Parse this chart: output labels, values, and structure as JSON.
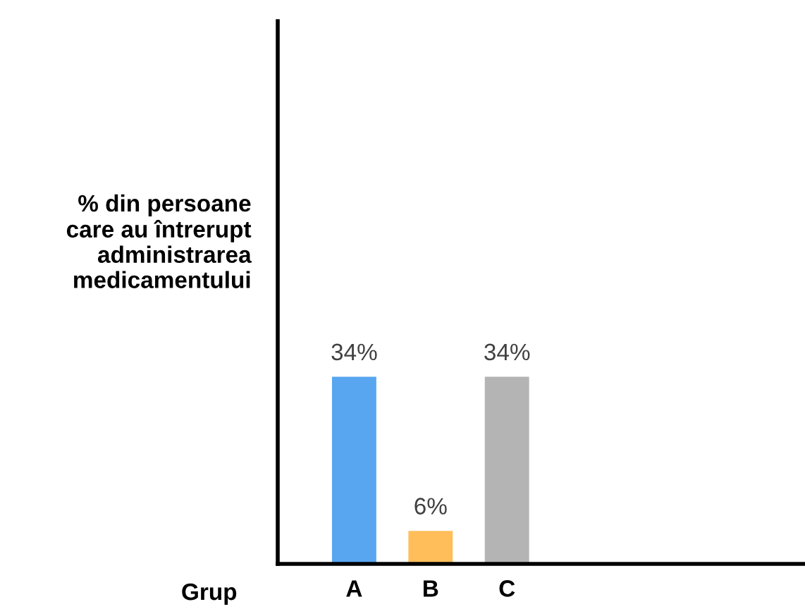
{
  "chart_data": {
    "type": "bar",
    "xlabel": "Grup",
    "ylabel": "% din persoane\ncare au întrerupt\nadministrarea\nmedicamentului",
    "categories": [
      "A",
      "B",
      "C"
    ],
    "values": [
      34,
      6,
      34
    ],
    "colors": [
      "#58a5f0",
      "#ffbe5a",
      "#b4b4b4"
    ],
    "value_labels": [
      "34%",
      "6%",
      "34%"
    ],
    "grid": false
  }
}
